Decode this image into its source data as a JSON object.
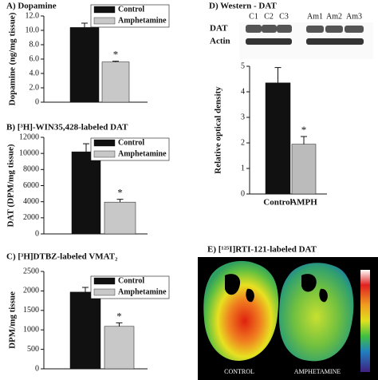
{
  "chart_data": [
    {
      "type": "bar",
      "title": "A) Dopamine",
      "y_label": "Dopamine (ng/mg tissue)",
      "series": [
        {
          "name": "Control",
          "color": "#111111",
          "values": [
            10.4
          ],
          "errors": [
            0.6
          ]
        },
        {
          "name": "Amphetamine",
          "color": "#c8c8c8",
          "values": [
            5.6
          ],
          "errors": [
            0.1
          ]
        }
      ],
      "annotation": "*",
      "ylim": [
        0,
        12
      ],
      "yticks": [
        0,
        {
          "value": 2,
          "label": "2.0"
        },
        {
          "value": 4,
          "label": "4.0"
        },
        {
          "value": 6,
          "label": "6.0"
        },
        {
          "value": 8,
          "label": "8.0"
        },
        {
          "value": 10,
          "label": "10.0"
        },
        {
          "value": 12,
          "label": "12.0"
        }
      ]
    },
    {
      "type": "bar",
      "title": "B) [³H]-WIN35,428-labeled DAT",
      "y_label": "DAT (DPM/mg tissue)",
      "series": [
        {
          "name": "Control",
          "color": "#111111",
          "values": [
            10200
          ],
          "errors": [
            1000
          ]
        },
        {
          "name": "Amphetamine",
          "color": "#c8c8c8",
          "values": [
            3950
          ],
          "errors": [
            350
          ]
        }
      ],
      "annotation": "*",
      "ylim": [
        0,
        12000
      ],
      "yticks": [
        0,
        2000,
        4000,
        6000,
        8000,
        10000,
        12000
      ]
    },
    {
      "type": "bar",
      "title": "C) [³H]DTBZ-labeled VMAT₂",
      "y_label": "DPM/mg tissue",
      "series": [
        {
          "name": "Control",
          "color": "#111111",
          "values": [
            1970
          ],
          "errors": [
            120
          ]
        },
        {
          "name": "Amphetamine",
          "color": "#c8c8c8",
          "values": [
            1090
          ],
          "errors": [
            90
          ]
        }
      ],
      "annotation": "*",
      "ylim": [
        0,
        2500
      ],
      "yticks": [
        0,
        500,
        1000,
        1500,
        2000,
        2500
      ]
    },
    {
      "type": "bar",
      "title": "D) Western - DAT",
      "y_label": "Relative optical density",
      "categories": [
        "Control",
        "AMPH"
      ],
      "values": [
        4.35,
        1.95
      ],
      "errors": [
        0.6,
        0.3
      ],
      "colors": [
        "#111111",
        "#bbbbbb"
      ],
      "annotation": "*",
      "ylim": [
        0,
        5
      ],
      "yticks": [
        0,
        1,
        2,
        3,
        4,
        5
      ]
    }
  ],
  "blot": {
    "lanes": [
      "C1",
      "C2",
      "C3",
      "Am1",
      "Am2",
      "Am3"
    ],
    "rows": [
      "DAT",
      "Actin"
    ]
  },
  "autoradiograph": {
    "title": "E) [¹²⁵I]RTI-121-labeled DAT",
    "labels": [
      "CONTROL",
      "AMPHETAMINE"
    ]
  }
}
